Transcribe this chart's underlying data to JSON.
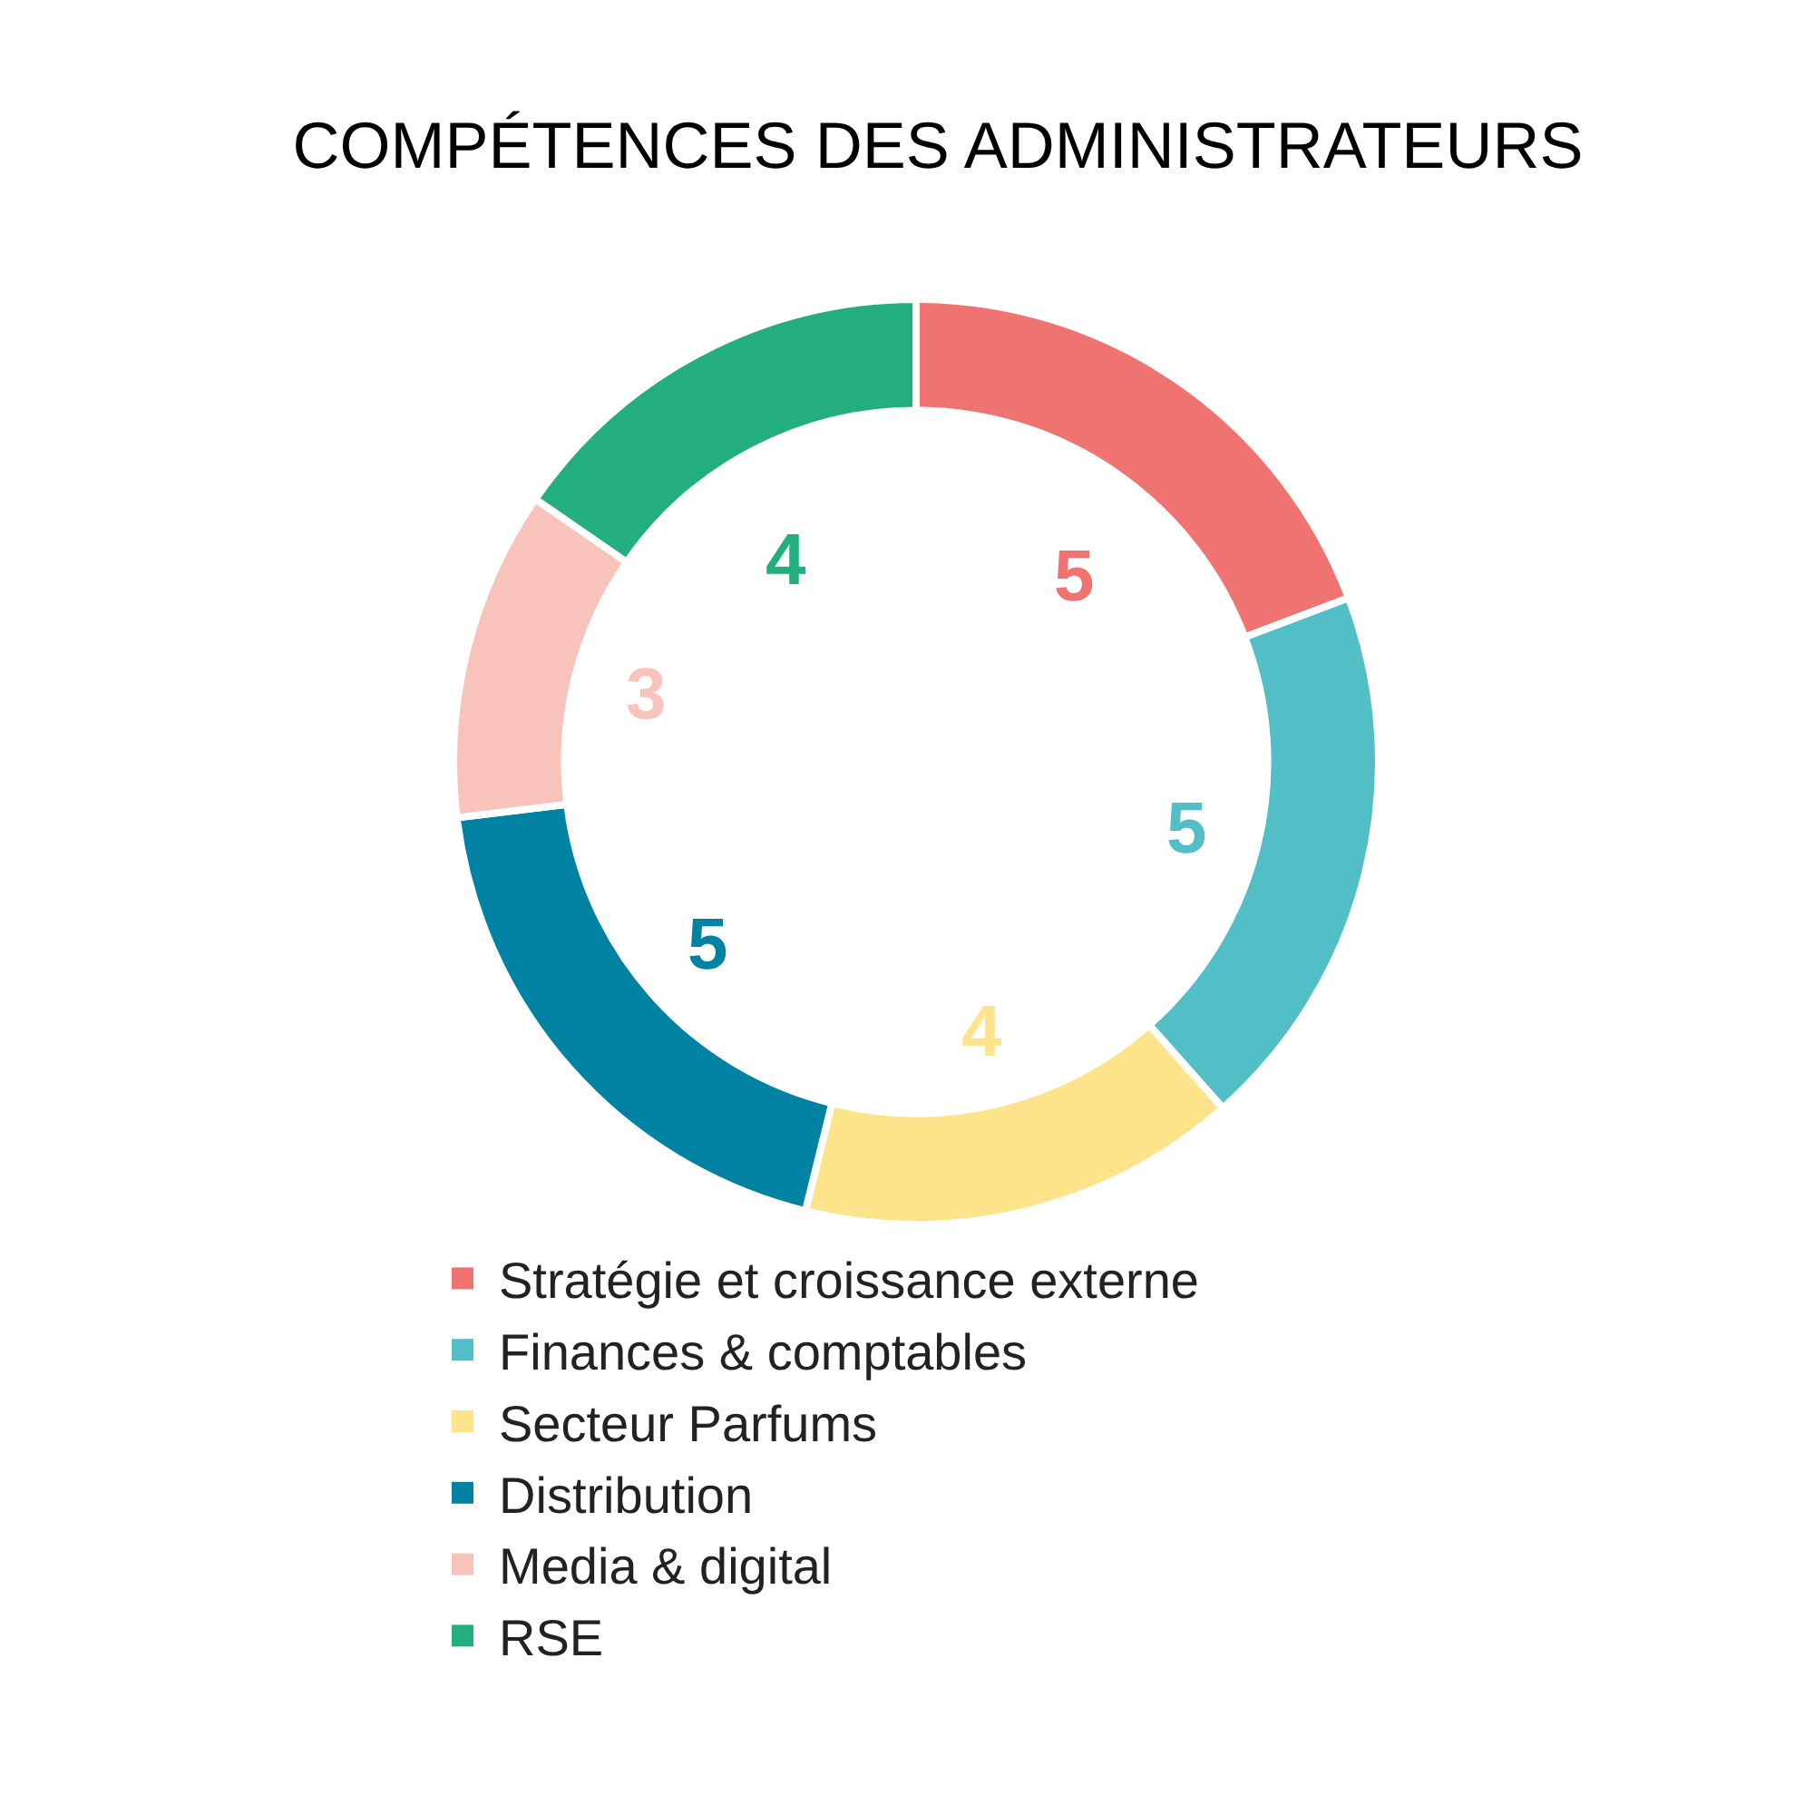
{
  "chart_data": {
    "type": "donut",
    "title": "COMPÉTENCES DES ADMINISTRATEURS",
    "categories": [
      "Stratégie et croissance externe",
      "Finances & comptables",
      "Secteur Parfums",
      "Distribution",
      "Media & digital",
      "RSE"
    ],
    "values": [
      5,
      5,
      4,
      5,
      3,
      4
    ],
    "colors": [
      "#ef7370",
      "#52bfc7",
      "#fde38a",
      "#0083a3",
      "#f8c3bb",
      "#22ae7d"
    ],
    "data_labels": true,
    "legend": "bottom"
  }
}
